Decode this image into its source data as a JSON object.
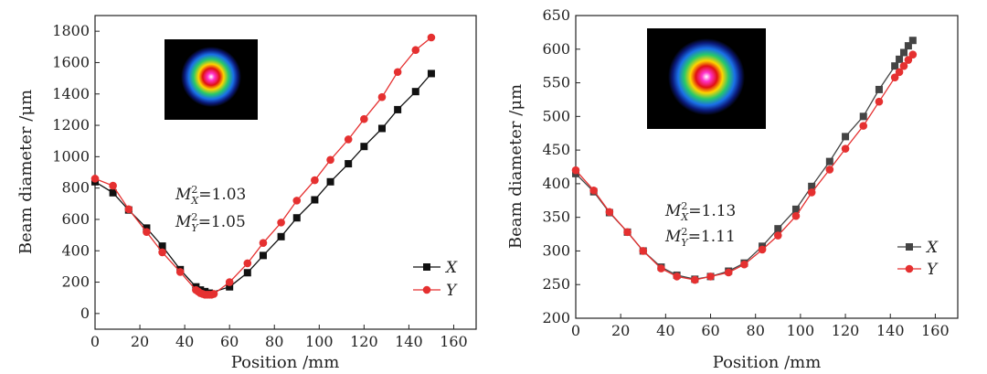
{
  "chart_data": [
    {
      "type": "line",
      "xlabel": "Position /mm",
      "ylabel": "Beam diameter /μm",
      "xlim": [
        0,
        170
      ],
      "ylim": [
        -100,
        1900
      ],
      "xticks": [
        "0",
        "20",
        "40",
        "60",
        "80",
        "100",
        "120",
        "140",
        "160"
      ],
      "yticks": [
        "0",
        "200",
        "400",
        "600",
        "800",
        "1000",
        "1200",
        "1400",
        "1600",
        "1800"
      ],
      "annotations": [
        {
          "main": "M",
          "sub": "X",
          "sup": "2",
          "value": "=1.03"
        },
        {
          "main": "M",
          "sub": "Y",
          "sup": "2",
          "value": "=1.05"
        }
      ],
      "legend_position": "bottom-right",
      "series": [
        {
          "name": "X",
          "color": "#111111",
          "marker": "square",
          "x": [
            0,
            8,
            15,
            23,
            30,
            38,
            45,
            47,
            49,
            51,
            60,
            68,
            75,
            83,
            90,
            98,
            105,
            113,
            120,
            128,
            135,
            143,
            150
          ],
          "y": [
            840,
            770,
            660,
            545,
            430,
            280,
            170,
            150,
            140,
            130,
            170,
            260,
            370,
            490,
            610,
            725,
            840,
            955,
            1065,
            1180,
            1300,
            1415,
            1530
          ]
        },
        {
          "name": "Y",
          "color": "#e53030",
          "marker": "circle",
          "x": [
            0,
            8,
            15,
            23,
            30,
            38,
            45,
            46,
            47,
            48,
            49,
            50,
            51,
            52,
            53,
            60,
            68,
            75,
            83,
            90,
            98,
            105,
            113,
            120,
            128,
            135,
            143,
            150
          ],
          "y": [
            860,
            815,
            665,
            520,
            390,
            265,
            150,
            140,
            130,
            125,
            120,
            120,
            120,
            120,
            125,
            200,
            320,
            450,
            580,
            720,
            850,
            980,
            1110,
            1240,
            1380,
            1540,
            1680,
            1760
          ]
        }
      ]
    },
    {
      "type": "line",
      "xlabel": "Position /mm",
      "ylabel": "Beam diameter /μm",
      "xlim": [
        0,
        170
      ],
      "ylim": [
        200,
        650
      ],
      "xticks": [
        "0",
        "20",
        "40",
        "60",
        "80",
        "100",
        "120",
        "140",
        "160"
      ],
      "yticks": [
        "200",
        "250",
        "300",
        "350",
        "400",
        "450",
        "500",
        "550",
        "600",
        "650"
      ],
      "annotations": [
        {
          "main": "M",
          "sub": "X",
          "sup": "2",
          "value": "=1.13"
        },
        {
          "main": "M",
          "sub": "Y",
          "sup": "2",
          "value": "=1.11"
        }
      ],
      "legend_position": "right",
      "series": [
        {
          "name": "X",
          "color": "#444444",
          "marker": "square",
          "x": [
            0,
            8,
            15,
            23,
            30,
            38,
            45,
            53,
            60,
            68,
            75,
            83,
            90,
            98,
            105,
            113,
            120,
            128,
            135,
            142,
            144,
            146,
            148,
            150
          ],
          "y": [
            415,
            388,
            357,
            328,
            300,
            276,
            264,
            258,
            262,
            270,
            282,
            307,
            333,
            362,
            396,
            433,
            470,
            500,
            540,
            575,
            585,
            595,
            605,
            613
          ]
        },
        {
          "name": "Y",
          "color": "#e53030",
          "marker": "circle",
          "x": [
            0,
            8,
            15,
            23,
            30,
            38,
            45,
            53,
            60,
            68,
            75,
            83,
            90,
            98,
            105,
            113,
            120,
            128,
            135,
            142,
            144,
            146,
            148,
            150
          ],
          "y": [
            420,
            390,
            358,
            328,
            300,
            274,
            262,
            257,
            262,
            268,
            280,
            302,
            323,
            352,
            387,
            421,
            452,
            486,
            522,
            558,
            566,
            575,
            584,
            592
          ]
        }
      ]
    }
  ]
}
